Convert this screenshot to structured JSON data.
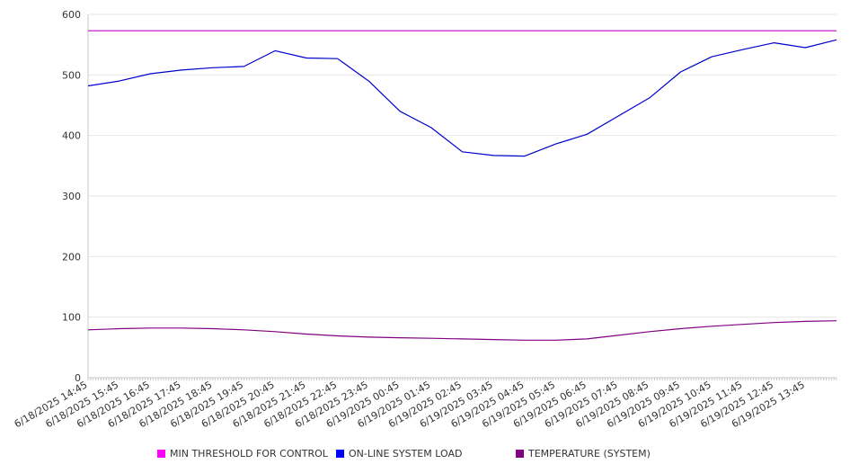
{
  "chart_data": {
    "type": "line",
    "title": "",
    "xlabel": "",
    "ylabel": "",
    "ylim": [
      0,
      600
    ],
    "y_ticks": [
      0,
      100,
      200,
      300,
      400,
      500,
      600
    ],
    "grid": "horizontal",
    "legend_position": "bottom",
    "x_ticks": [
      "6/18/2025 14:45",
      "6/18/2025 15:45",
      "6/18/2025 16:45",
      "6/18/2025 17:45",
      "6/18/2025 18:45",
      "6/18/2025 19:45",
      "6/18/2025 20:45",
      "6/18/2025 21:45",
      "6/18/2025 22:45",
      "6/18/2025 23:45",
      "6/19/2025 00:45",
      "6/19/2025 01:45",
      "6/19/2025 02:45",
      "6/19/2025 03:45",
      "6/19/2025 04:45",
      "6/19/2025 05:45",
      "6/19/2025 06:45",
      "6/19/2025 07:45",
      "6/19/2025 08:45",
      "6/19/2025 09:45",
      "6/19/2025 10:45",
      "6/19/2025 11:45",
      "6/19/2025 12:45",
      "6/19/2025 13:45"
    ],
    "series": [
      {
        "name": "MIN THRESHOLD FOR CONTROL",
        "color": "#cc00cc",
        "legend_color": "#ff00ff",
        "values": [
          573,
          573,
          573,
          573,
          573,
          573,
          573,
          573,
          573,
          573,
          573,
          573,
          573,
          573,
          573,
          573,
          573,
          573,
          573,
          573,
          573,
          573,
          573,
          573,
          573
        ]
      },
      {
        "name": "ON-LINE SYSTEM LOAD",
        "color": "#0000cc",
        "legend_color": "#0000ff",
        "values": [
          482,
          490,
          502,
          508,
          512,
          514,
          540,
          528,
          527,
          490,
          440,
          413,
          373,
          367,
          366,
          386,
          402,
          432,
          462,
          505,
          530,
          542,
          553,
          545,
          558
        ]
      },
      {
        "name": "TEMPERATURE (SYSTEM)",
        "color": "#800080",
        "legend_color": "#800080",
        "values": [
          79,
          81,
          82,
          82,
          81,
          79,
          76,
          72,
          69,
          67,
          66,
          65,
          64,
          63,
          62,
          62,
          64,
          70,
          76,
          81,
          85,
          88,
          91,
          93,
          94
        ]
      }
    ]
  }
}
